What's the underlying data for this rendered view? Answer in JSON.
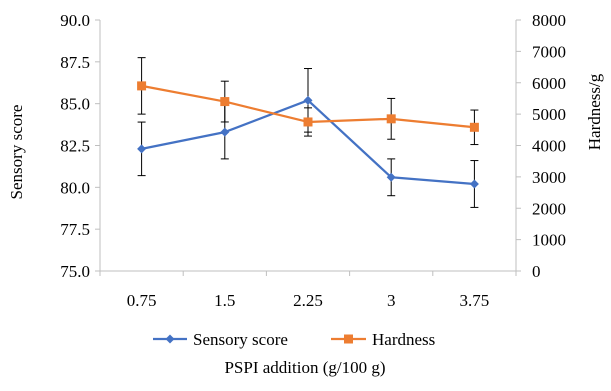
{
  "chart_data": {
    "type": "line",
    "categories": [
      "0.75",
      "1.5",
      "2.25",
      "3",
      "3.75"
    ],
    "xlabel": "PSPI addition (g/100 g)",
    "ylabel": "Sensory score",
    "y2label": "Hardness/g",
    "ylim": [
      75.0,
      90.0
    ],
    "y2lim": [
      0,
      8000
    ],
    "yticks": [
      "75.0",
      "77.5",
      "80.0",
      "82.5",
      "85.0",
      "87.5",
      "90.0"
    ],
    "y2ticks": [
      "0",
      "1000",
      "2000",
      "3000",
      "4000",
      "5000",
      "6000",
      "7000",
      "8000"
    ],
    "grid": false,
    "legend_position": "bottom",
    "series": [
      {
        "name": "Sensory score",
        "axis": "left",
        "color": "#4472C4",
        "marker": "diamond",
        "values": [
          82.3,
          83.3,
          85.2,
          80.6,
          80.2
        ],
        "errors": [
          1.6,
          1.6,
          1.9,
          1.1,
          1.4
        ]
      },
      {
        "name": "Hardness",
        "axis": "right",
        "color": "#ED7D31",
        "marker": "square",
        "values": [
          5900,
          5400,
          4750,
          4850,
          4580
        ],
        "errors": [
          900,
          650,
          450,
          650,
          550
        ]
      }
    ]
  }
}
